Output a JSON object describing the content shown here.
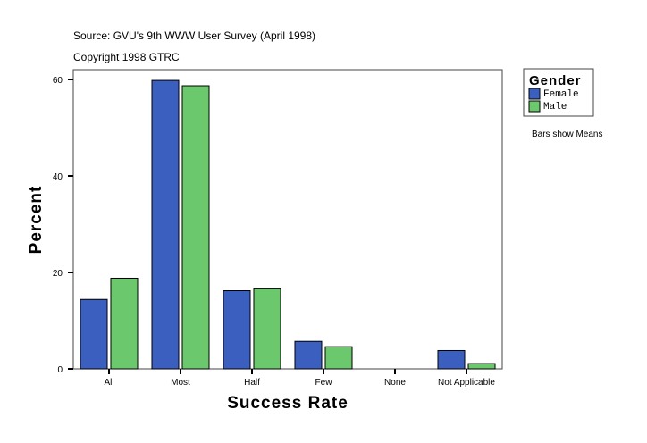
{
  "chart_data": {
    "type": "bar",
    "source": "Source: GVU's 9th WWW User Survey (April 1998)",
    "copyright": "Copyright 1998 GTRC",
    "xlabel": "Success Rate",
    "ylabel": "Percent",
    "categories": [
      "All",
      "Most",
      "Half",
      "Few",
      "None",
      "Not Applicable"
    ],
    "ylim": [
      0,
      60
    ],
    "yticks": [
      0,
      20,
      40,
      60
    ],
    "grid": false,
    "legend": {
      "title": "Gender",
      "placement": "right"
    },
    "note": "Bars show Means",
    "series": [
      {
        "name": "Female",
        "color": "#3a5fbf",
        "values": [
          14.4,
          59.8,
          16.2,
          5.7,
          0,
          3.8
        ]
      },
      {
        "name": "Male",
        "color": "#6cc86c",
        "values": [
          18.8,
          58.7,
          16.6,
          4.6,
          0,
          1.1
        ]
      }
    ]
  }
}
